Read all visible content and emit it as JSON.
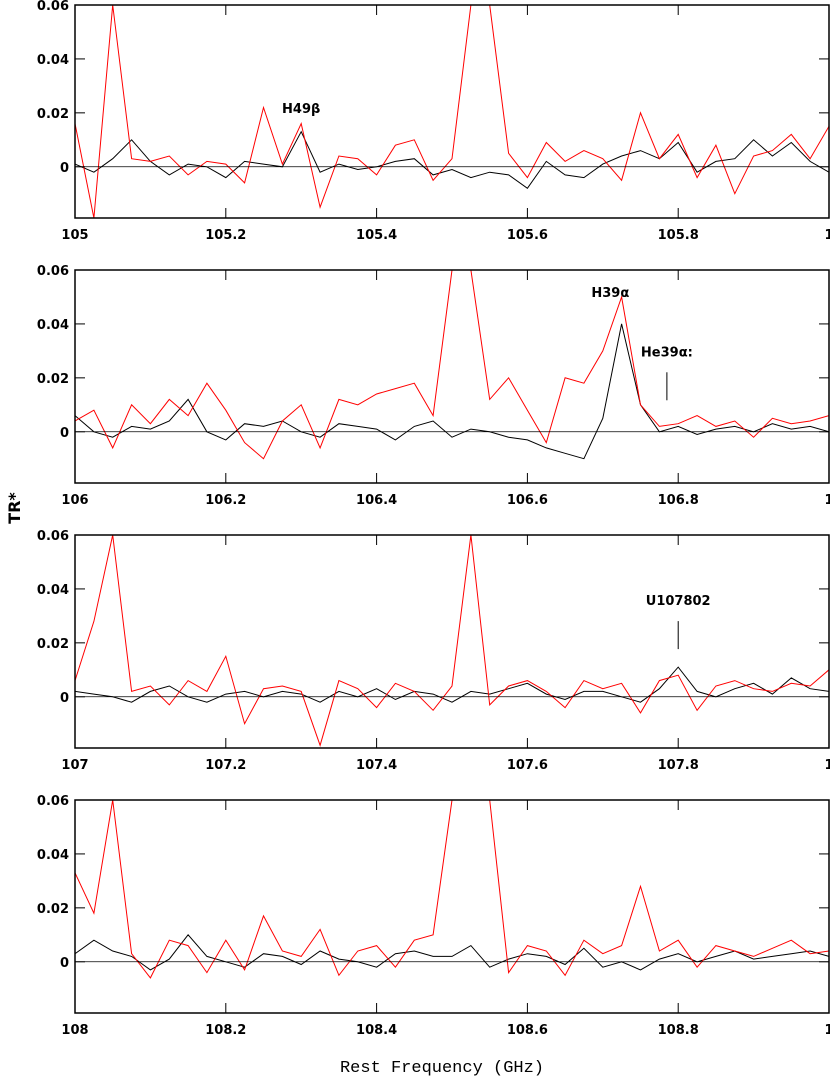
{
  "chart_data": [
    {
      "type": "line",
      "x": [
        105.0,
        105.025,
        105.05,
        105.075,
        105.1,
        105.125,
        105.15,
        105.175,
        105.2,
        105.225,
        105.25,
        105.275,
        105.3,
        105.325,
        105.35,
        105.375,
        105.4,
        105.425,
        105.45,
        105.475,
        105.5,
        105.525,
        105.55,
        105.575,
        105.6,
        105.625,
        105.65,
        105.675,
        105.7,
        105.725,
        105.75,
        105.775,
        105.8,
        105.825,
        105.85,
        105.875,
        105.9,
        105.925,
        105.95,
        105.975,
        106.0
      ],
      "series": [
        {
          "color": "#000000",
          "values": [
            0.001,
            -0.002,
            0.003,
            0.01,
            0.002,
            -0.003,
            0.001,
            0.0,
            -0.004,
            0.002,
            0.001,
            0.0,
            0.013,
            -0.002,
            0.001,
            -0.001,
            0.0,
            0.002,
            0.003,
            -0.003,
            -0.001,
            -0.004,
            -0.002,
            -0.003,
            -0.008,
            0.002,
            -0.003,
            -0.004,
            0.001,
            0.004,
            0.006,
            0.003,
            0.009,
            -0.002,
            0.002,
            0.003,
            0.01,
            0.004,
            0.009,
            0.002,
            -0.002
          ]
        },
        {
          "color": "#ff0000",
          "values": [
            0.016,
            -0.019,
            0.06,
            0.003,
            0.002,
            0.004,
            -0.003,
            0.002,
            0.001,
            -0.006,
            0.022,
            0.001,
            0.016,
            -0.015,
            0.004,
            0.003,
            -0.003,
            0.008,
            0.01,
            -0.005,
            0.003,
            0.06,
            0.06,
            0.005,
            -0.004,
            0.009,
            0.002,
            0.006,
            0.003,
            -0.005,
            0.02,
            0.003,
            0.012,
            -0.004,
            0.008,
            -0.01,
            0.004,
            0.006,
            0.012,
            0.003,
            0.015
          ]
        }
      ],
      "xlim": [
        105,
        106
      ],
      "xticks": [
        105,
        105.2,
        105.4,
        105.6,
        105.8,
        {
          "value": 106,
          "label": "1"
        }
      ],
      "ylim": [
        -0.019,
        0.06
      ],
      "yticks": [
        0,
        0.02,
        0.04,
        0.06
      ],
      "annotations": [
        {
          "text": "H49β",
          "x": 105.3,
          "y": 0.02
        }
      ]
    },
    {
      "type": "line",
      "x": [
        106.0,
        106.025,
        106.05,
        106.075,
        106.1,
        106.125,
        106.15,
        106.175,
        106.2,
        106.225,
        106.25,
        106.275,
        106.3,
        106.325,
        106.35,
        106.375,
        106.4,
        106.425,
        106.45,
        106.475,
        106.5,
        106.525,
        106.55,
        106.575,
        106.6,
        106.625,
        106.65,
        106.675,
        106.7,
        106.725,
        106.75,
        106.775,
        106.8,
        106.825,
        106.85,
        106.875,
        106.9,
        106.925,
        106.95,
        106.975,
        107.0
      ],
      "series": [
        {
          "color": "#000000",
          "values": [
            0.006,
            0.0,
            -0.002,
            0.002,
            0.001,
            0.004,
            0.012,
            0.0,
            -0.003,
            0.003,
            0.002,
            0.004,
            0.0,
            -0.002,
            0.003,
            0.002,
            0.001,
            -0.003,
            0.002,
            0.004,
            -0.002,
            0.001,
            0.0,
            -0.002,
            -0.003,
            -0.006,
            -0.008,
            -0.01,
            0.005,
            0.04,
            0.01,
            0.0,
            0.002,
            -0.001,
            0.001,
            0.002,
            0.0,
            0.003,
            0.001,
            0.002,
            0.0
          ]
        },
        {
          "color": "#ff0000",
          "values": [
            0.004,
            0.008,
            -0.006,
            0.01,
            0.003,
            0.012,
            0.006,
            0.018,
            0.008,
            -0.004,
            -0.01,
            0.004,
            0.01,
            -0.006,
            0.012,
            0.01,
            0.014,
            0.016,
            0.018,
            0.006,
            0.06,
            0.06,
            0.012,
            0.02,
            0.008,
            -0.004,
            0.02,
            0.018,
            0.03,
            0.05,
            0.01,
            0.002,
            0.003,
            0.006,
            0.002,
            0.004,
            -0.002,
            0.005,
            0.003,
            0.004,
            0.006
          ]
        }
      ],
      "xlim": [
        106,
        107
      ],
      "xticks": [
        106,
        106.2,
        106.4,
        106.6,
        106.8,
        {
          "value": 107,
          "label": "1"
        }
      ],
      "ylim": [
        -0.019,
        0.06
      ],
      "yticks": [
        0,
        0.02,
        0.04,
        0.06
      ],
      "y_label": "TR*",
      "annotations": [
        {
          "text": "H39α",
          "x": 106.71,
          "y": 0.05
        },
        {
          "text": "He39α:",
          "x": 106.785,
          "y": 0.028,
          "pointer": true
        }
      ]
    },
    {
      "type": "line",
      "x": [
        107.0,
        107.025,
        107.05,
        107.075,
        107.1,
        107.125,
        107.15,
        107.175,
        107.2,
        107.225,
        107.25,
        107.275,
        107.3,
        107.325,
        107.35,
        107.375,
        107.4,
        107.425,
        107.45,
        107.475,
        107.5,
        107.525,
        107.55,
        107.575,
        107.6,
        107.625,
        107.65,
        107.675,
        107.7,
        107.725,
        107.75,
        107.775,
        107.8,
        107.825,
        107.85,
        107.875,
        107.9,
        107.925,
        107.95,
        107.975,
        108.0
      ],
      "series": [
        {
          "color": "#000000",
          "values": [
            0.002,
            0.001,
            0.0,
            -0.002,
            0.002,
            0.004,
            0.0,
            -0.002,
            0.001,
            0.002,
            0.0,
            0.002,
            0.001,
            -0.002,
            0.002,
            0.0,
            0.003,
            -0.001,
            0.002,
            0.001,
            -0.002,
            0.002,
            0.001,
            0.003,
            0.005,
            0.001,
            -0.001,
            0.002,
            0.002,
            0.0,
            -0.002,
            0.003,
            0.011,
            0.002,
            0.0,
            0.003,
            0.005,
            0.001,
            0.007,
            0.003,
            0.002
          ]
        },
        {
          "color": "#ff0000",
          "values": [
            0.006,
            0.028,
            0.06,
            0.002,
            0.004,
            -0.003,
            0.006,
            0.002,
            0.015,
            -0.01,
            0.003,
            0.004,
            0.002,
            -0.018,
            0.006,
            0.003,
            -0.004,
            0.005,
            0.002,
            -0.005,
            0.004,
            0.06,
            -0.003,
            0.004,
            0.006,
            0.002,
            -0.004,
            0.006,
            0.003,
            0.005,
            -0.006,
            0.006,
            0.008,
            -0.005,
            0.004,
            0.006,
            0.003,
            0.002,
            0.005,
            0.004,
            0.01
          ]
        }
      ],
      "xlim": [
        107,
        108
      ],
      "xticks": [
        107,
        107.2,
        107.4,
        107.6,
        107.8,
        {
          "value": 108,
          "label": "1"
        }
      ],
      "ylim": [
        -0.019,
        0.06
      ],
      "yticks": [
        0,
        0.02,
        0.04,
        0.06
      ],
      "annotations": [
        {
          "text": "U107802",
          "x": 107.8,
          "y": 0.034,
          "pointer": true
        }
      ]
    },
    {
      "type": "line",
      "x": [
        108.0,
        108.025,
        108.05,
        108.075,
        108.1,
        108.125,
        108.15,
        108.175,
        108.2,
        108.225,
        108.25,
        108.275,
        108.3,
        108.325,
        108.35,
        108.375,
        108.4,
        108.425,
        108.45,
        108.475,
        108.5,
        108.525,
        108.55,
        108.575,
        108.6,
        108.625,
        108.65,
        108.675,
        108.7,
        108.725,
        108.75,
        108.775,
        108.8,
        108.825,
        108.85,
        108.875,
        108.9,
        108.925,
        108.95,
        108.975,
        109.0
      ],
      "series": [
        {
          "color": "#000000",
          "values": [
            0.003,
            0.008,
            0.004,
            0.002,
            -0.003,
            0.001,
            0.01,
            0.002,
            0.0,
            -0.002,
            0.003,
            0.002,
            -0.001,
            0.004,
            0.001,
            0.0,
            -0.002,
            0.003,
            0.004,
            0.002,
            0.002,
            0.006,
            -0.002,
            0.001,
            0.003,
            0.002,
            -0.001,
            0.005,
            -0.002,
            0.0,
            -0.003,
            0.001,
            0.003,
            0.0,
            0.002,
            0.004,
            0.001,
            0.002,
            0.003,
            0.004,
            0.002
          ]
        },
        {
          "color": "#ff0000",
          "values": [
            0.033,
            0.018,
            0.06,
            0.003,
            -0.006,
            0.008,
            0.006,
            -0.004,
            0.008,
            -0.003,
            0.017,
            0.004,
            0.002,
            0.012,
            -0.005,
            0.004,
            0.006,
            -0.002,
            0.008,
            0.01,
            0.06,
            0.06,
            0.06,
            -0.004,
            0.006,
            0.004,
            -0.005,
            0.008,
            0.003,
            0.006,
            0.028,
            0.004,
            0.008,
            -0.002,
            0.006,
            0.004,
            0.002,
            0.005,
            0.008,
            0.003,
            0.004
          ]
        }
      ],
      "xlim": [
        108,
        109
      ],
      "xticks": [
        108,
        108.2,
        108.4,
        108.6,
        108.8,
        {
          "value": 109,
          "label": "1"
        }
      ],
      "ylim": [
        -0.019,
        0.06
      ],
      "yticks": [
        0,
        0.02,
        0.04,
        0.06
      ],
      "x_label": "Rest Frequency (GHz)"
    }
  ]
}
